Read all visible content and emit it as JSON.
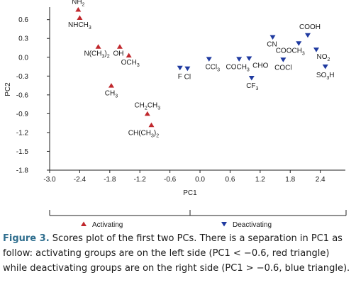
{
  "chart_data": {
    "type": "scatter",
    "xlabel": "PC1",
    "ylabel": "PC2",
    "xlim": [
      -3.0,
      2.9
    ],
    "ylim": [
      -1.8,
      0.8
    ],
    "xticks": [
      "-3.0",
      "-2.4",
      "-1.8",
      "-1.2",
      "-0.6",
      "0.0",
      "0.6",
      "1.2",
      "1.8",
      "2.4"
    ],
    "yticks": [
      "0.6",
      "0.3",
      "0.0",
      "-0.3",
      "-0.6",
      "-0.9",
      "-1.2",
      "-1.5",
      "-1.8"
    ],
    "grid": false,
    "series": [
      {
        "name": "Activating",
        "color": "#c0282d",
        "marker": "triangle-up",
        "points": [
          {
            "x": -2.43,
            "y": 0.76,
            "label": "NH2"
          },
          {
            "x": -2.4,
            "y": 0.63,
            "label": "NHCH3"
          },
          {
            "x": -2.03,
            "y": 0.17,
            "label": "N(CH3)2"
          },
          {
            "x": -1.6,
            "y": 0.17,
            "label": "OH"
          },
          {
            "x": -1.42,
            "y": 0.03,
            "label": "OCH3"
          },
          {
            "x": -1.77,
            "y": -0.45,
            "label": "CH3"
          },
          {
            "x": -1.05,
            "y": -0.9,
            "label": "CH2CH3"
          },
          {
            "x": -0.97,
            "y": -1.08,
            "label": "CH(CH3)2"
          }
        ]
      },
      {
        "name": "Deactivating",
        "color": "#1f3aa0",
        "marker": "triangle-down",
        "points": [
          {
            "x": -0.4,
            "y": -0.17,
            "label": "F"
          },
          {
            "x": -0.25,
            "y": -0.18,
            "label": "Cl"
          },
          {
            "x": 0.18,
            "y": -0.03,
            "label": "CCl3"
          },
          {
            "x": 0.78,
            "y": -0.03,
            "label": "COCH3"
          },
          {
            "x": 0.98,
            "y": -0.02,
            "label": "CHO"
          },
          {
            "x": 1.03,
            "y": -0.33,
            "label": "CF3"
          },
          {
            "x": 1.45,
            "y": 0.32,
            "label": "CN"
          },
          {
            "x": 1.66,
            "y": -0.04,
            "label": "COCl"
          },
          {
            "x": 1.97,
            "y": 0.22,
            "label": "COOCH3"
          },
          {
            "x": 2.15,
            "y": 0.35,
            "label": "COOH"
          },
          {
            "x": 2.32,
            "y": 0.12,
            "label": "NO2"
          },
          {
            "x": 2.5,
            "y": -0.15,
            "label": "SO3H"
          }
        ]
      }
    ],
    "legend": {
      "placement": "bottom",
      "items": [
        {
          "label": "Activating",
          "color": "#c0282d",
          "marker": "triangle-up"
        },
        {
          "label": "Deactivating",
          "color": "#1f3aa0",
          "marker": "triangle-down"
        }
      ]
    }
  },
  "caption": {
    "figure_label": "Figure 3.",
    "text": " Scores plot of the first two PCs. There is a separation in PC1 as follow: activating groups are on the left side (PC1 < −0.6, red triangle) while deactivating groups are on the right side (PC1 > −0.6, blue triangle)."
  }
}
